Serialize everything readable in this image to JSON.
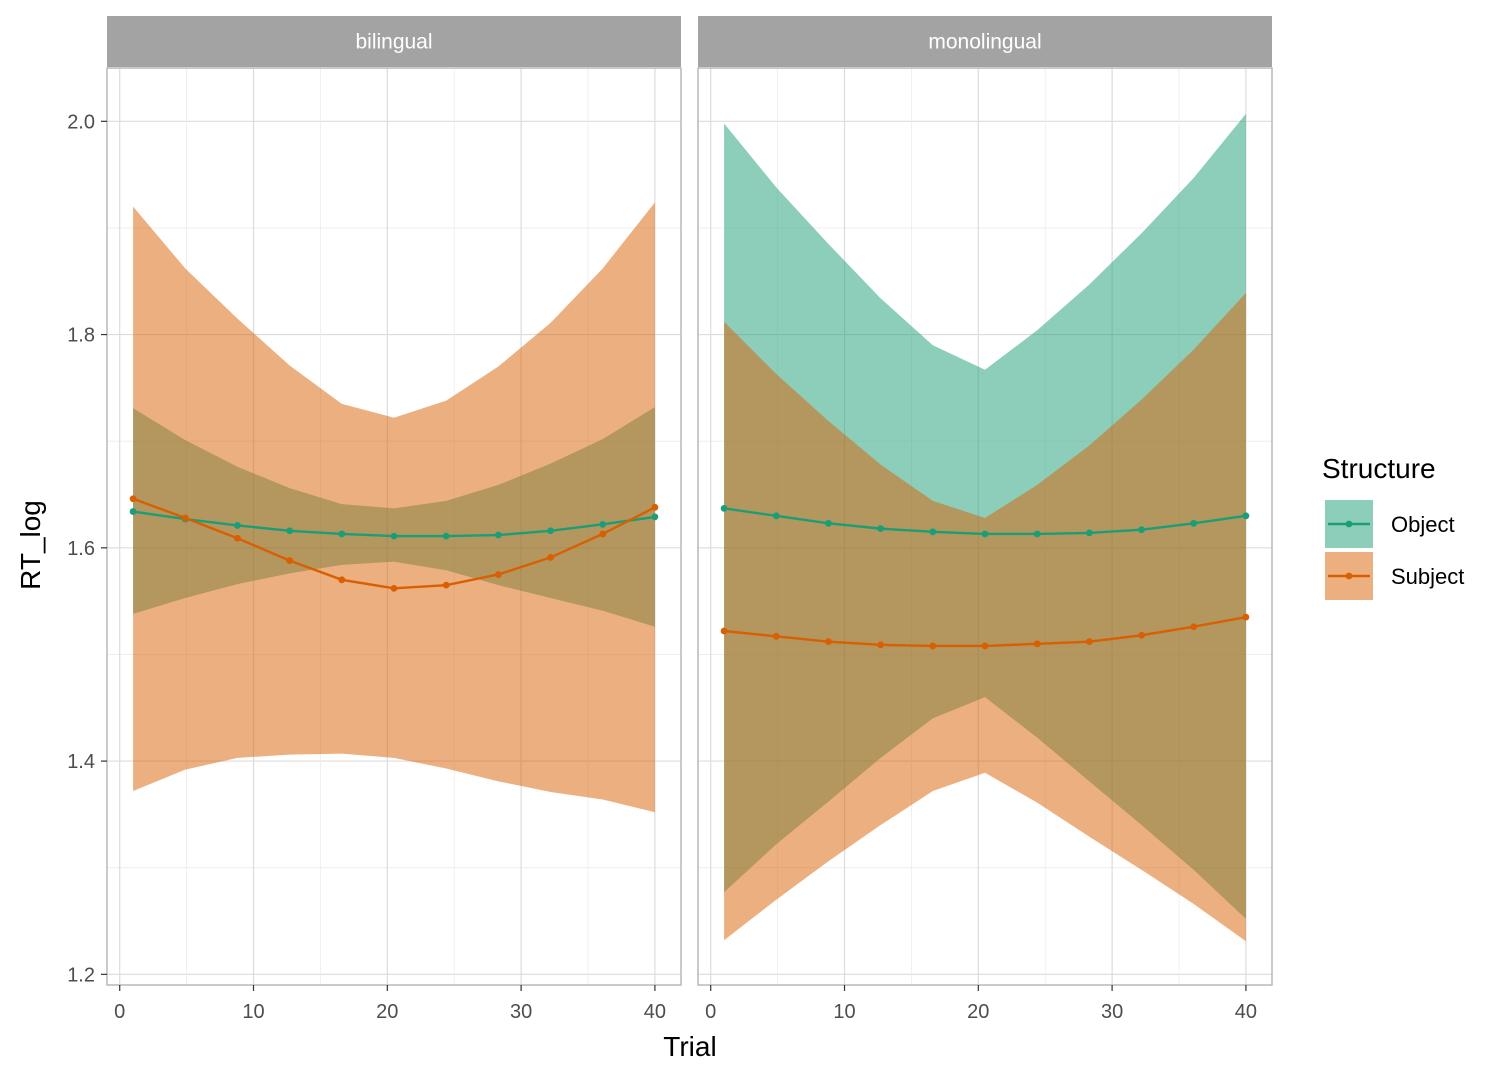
{
  "chart_data": {
    "type": "line",
    "xlabel": "Trial",
    "ylabel": "RT_log",
    "xlim": [
      -0.95,
      41.95
    ],
    "ylim": [
      1.19,
      2.05
    ],
    "x_ticks": [
      0,
      10,
      20,
      30,
      40
    ],
    "x_tick_labels": [
      "0",
      "10",
      "20",
      "30",
      "40"
    ],
    "y_ticks": [
      1.2,
      1.4,
      1.6,
      1.8,
      2.0
    ],
    "y_tick_labels": [
      "1.2",
      "1.4",
      "1.6",
      "1.8",
      "2.0"
    ],
    "grid": true,
    "legend": {
      "title": "Structure",
      "placement": "right",
      "entries": [
        "Object",
        "Subject"
      ]
    },
    "colors": {
      "Object": "#1b9e77",
      "Subject": "#d95f02",
      "strip_background": "#a3a3a3",
      "panel_border": "#b3b3b3",
      "grid": "#dcdcdc"
    },
    "x": [
      1,
      4.9,
      8.8,
      12.7,
      16.6,
      20.5,
      24.4,
      28.3,
      32.2,
      36.1,
      40
    ],
    "panels": [
      {
        "strip": "bilingual",
        "series": [
          {
            "name": "Object",
            "values": [
              1.634,
              1.627,
              1.621,
              1.616,
              1.613,
              1.611,
              1.611,
              1.612,
              1.616,
              1.622,
              1.629
            ],
            "lower": [
              1.538,
              1.553,
              1.566,
              1.576,
              1.584,
              1.587,
              1.579,
              1.565,
              1.553,
              1.541,
              1.526
            ],
            "upper": [
              1.731,
              1.701,
              1.676,
              1.656,
              1.641,
              1.637,
              1.644,
              1.659,
              1.679,
              1.702,
              1.732
            ]
          },
          {
            "name": "Subject",
            "values": [
              1.646,
              1.628,
              1.609,
              1.588,
              1.57,
              1.562,
              1.565,
              1.575,
              1.591,
              1.613,
              1.638
            ],
            "lower": [
              1.372,
              1.392,
              1.403,
              1.406,
              1.407,
              1.403,
              1.393,
              1.381,
              1.371,
              1.364,
              1.352
            ],
            "upper": [
              1.92,
              1.862,
              1.815,
              1.771,
              1.735,
              1.722,
              1.738,
              1.77,
              1.811,
              1.862,
              1.924
            ]
          }
        ]
      },
      {
        "strip": "monolingual",
        "series": [
          {
            "name": "Object",
            "values": [
              1.637,
              1.63,
              1.623,
              1.618,
              1.615,
              1.613,
              1.613,
              1.614,
              1.617,
              1.623,
              1.63
            ],
            "lower": [
              1.277,
              1.322,
              1.362,
              1.403,
              1.44,
              1.46,
              1.422,
              1.381,
              1.34,
              1.298,
              1.252
            ],
            "upper": [
              1.998,
              1.938,
              1.885,
              1.834,
              1.79,
              1.767,
              1.804,
              1.847,
              1.895,
              1.947,
              2.007
            ]
          },
          {
            "name": "Subject",
            "values": [
              1.522,
              1.517,
              1.512,
              1.509,
              1.508,
              1.508,
              1.51,
              1.512,
              1.518,
              1.526,
              1.535
            ],
            "lower": [
              1.232,
              1.27,
              1.306,
              1.34,
              1.372,
              1.389,
              1.361,
              1.329,
              1.298,
              1.266,
              1.231
            ],
            "upper": [
              1.812,
              1.763,
              1.719,
              1.678,
              1.644,
              1.628,
              1.659,
              1.696,
              1.739,
              1.786,
              1.839
            ]
          }
        ]
      }
    ]
  }
}
